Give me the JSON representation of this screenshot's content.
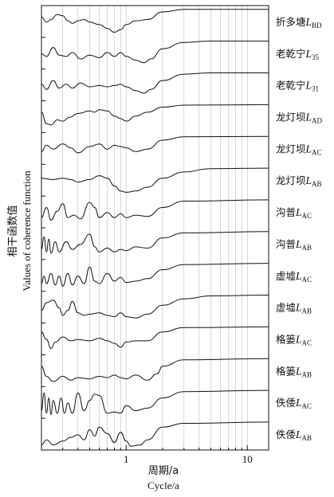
{
  "chart_data": {
    "type": "line",
    "xscale": "log",
    "xlim": [
      0.2,
      15
    ],
    "xticks": [
      1,
      10
    ],
    "xtick_labels": [
      "1",
      "10"
    ],
    "xlabel_cn": "周期/a",
    "xlabel_en": "Cycle/a",
    "ylabel_cn": "相干函数值",
    "ylabel_en": "Values of coherence function",
    "grid": "vertical log-minor grid",
    "series": [
      {
        "label_cn": "折多塘",
        "symbol": "L",
        "sub": "BD",
        "points": [
          [
            0.2,
            0.7
          ],
          [
            0.22,
            0.5
          ],
          [
            0.24,
            0.6
          ],
          [
            0.27,
            0.8
          ],
          [
            0.3,
            0.75
          ],
          [
            0.33,
            0.55
          ],
          [
            0.36,
            0.45
          ],
          [
            0.4,
            0.55
          ],
          [
            0.45,
            0.6
          ],
          [
            0.5,
            0.5
          ],
          [
            0.6,
            0.4
          ],
          [
            0.7,
            0.25
          ],
          [
            0.8,
            0.1
          ],
          [
            0.9,
            0.2
          ],
          [
            1.0,
            0.4
          ],
          [
            1.2,
            0.55
          ],
          [
            1.5,
            0.6
          ],
          [
            2,
            0.9
          ],
          [
            3,
            1
          ],
          [
            15,
            1
          ]
        ]
      },
      {
        "label_cn": "老乾宁",
        "symbol": "L",
        "sub": "35",
        "points": [
          [
            0.2,
            0.5
          ],
          [
            0.22,
            0.4
          ],
          [
            0.25,
            0.75
          ],
          [
            0.28,
            0.45
          ],
          [
            0.32,
            0.4
          ],
          [
            0.36,
            0.55
          ],
          [
            0.42,
            0.3
          ],
          [
            0.5,
            0.45
          ],
          [
            0.6,
            0.35
          ],
          [
            0.7,
            0.55
          ],
          [
            0.8,
            0.4
          ],
          [
            0.9,
            0.55
          ],
          [
            1.0,
            0.4
          ],
          [
            1.2,
            0.25
          ],
          [
            1.4,
            0.15
          ],
          [
            1.6,
            0.3
          ],
          [
            2,
            0.7
          ],
          [
            3,
            0.95
          ],
          [
            5,
            1
          ],
          [
            15,
            1
          ]
        ]
      },
      {
        "label_cn": "老乾宁",
        "symbol": "L",
        "sub": "31",
        "points": [
          [
            0.2,
            0.55
          ],
          [
            0.22,
            0.35
          ],
          [
            0.25,
            0.7
          ],
          [
            0.28,
            0.4
          ],
          [
            0.32,
            0.55
          ],
          [
            0.36,
            0.4
          ],
          [
            0.42,
            0.6
          ],
          [
            0.5,
            0.45
          ],
          [
            0.6,
            0.5
          ],
          [
            0.7,
            0.45
          ],
          [
            0.8,
            0.5
          ],
          [
            0.9,
            0.55
          ],
          [
            1.0,
            0.45
          ],
          [
            1.2,
            0.3
          ],
          [
            1.4,
            0.2
          ],
          [
            1.6,
            0.35
          ],
          [
            2,
            0.7
          ],
          [
            3,
            0.95
          ],
          [
            5,
            1
          ],
          [
            15,
            1
          ]
        ]
      },
      {
        "label_cn": "龙灯坝",
        "symbol": "L",
        "sub": "AD",
        "points": [
          [
            0.2,
            0.7
          ],
          [
            0.22,
            0.25
          ],
          [
            0.24,
            0.2
          ],
          [
            0.27,
            0.4
          ],
          [
            0.3,
            0.35
          ],
          [
            0.34,
            0.5
          ],
          [
            0.4,
            0.65
          ],
          [
            0.5,
            0.75
          ],
          [
            0.55,
            0.7
          ],
          [
            0.6,
            0.8
          ],
          [
            0.7,
            0.75
          ],
          [
            0.8,
            0.55
          ],
          [
            0.9,
            0.45
          ],
          [
            1.0,
            0.35
          ],
          [
            1.2,
            0.55
          ],
          [
            1.5,
            0.7
          ],
          [
            2,
            0.9
          ],
          [
            3,
            0.98
          ],
          [
            15,
            1
          ]
        ]
      },
      {
        "label_cn": "龙灯坝",
        "symbol": "L",
        "sub": "AC",
        "points": [
          [
            0.2,
            0.4
          ],
          [
            0.22,
            0.65
          ],
          [
            0.25,
            0.5
          ],
          [
            0.3,
            0.7
          ],
          [
            0.35,
            0.55
          ],
          [
            0.4,
            0.35
          ],
          [
            0.5,
            0.6
          ],
          [
            0.6,
            0.7
          ],
          [
            0.7,
            0.5
          ],
          [
            0.8,
            0.65
          ],
          [
            0.9,
            0.6
          ],
          [
            1.0,
            0.55
          ],
          [
            1.2,
            0.4
          ],
          [
            1.5,
            0.5
          ],
          [
            2,
            0.85
          ],
          [
            3,
            0.98
          ],
          [
            15,
            1
          ]
        ]
      },
      {
        "label_cn": "龙灯坝",
        "symbol": "L",
        "sub": "AB",
        "points": [
          [
            0.2,
            0.6
          ],
          [
            0.25,
            0.55
          ],
          [
            0.3,
            0.6
          ],
          [
            0.35,
            0.55
          ],
          [
            0.4,
            0.45
          ],
          [
            0.5,
            0.55
          ],
          [
            0.6,
            0.7
          ],
          [
            0.7,
            0.6
          ],
          [
            0.8,
            0.3
          ],
          [
            0.9,
            0.1
          ],
          [
            1.0,
            0.05
          ],
          [
            1.2,
            0.1
          ],
          [
            1.5,
            0.25
          ],
          [
            2,
            0.6
          ],
          [
            3,
            0.85
          ],
          [
            5,
            0.98
          ],
          [
            15,
            1
          ]
        ]
      },
      {
        "label_cn": "沟普",
        "symbol": "L",
        "sub": "AC",
        "points": [
          [
            0.2,
            0.3
          ],
          [
            0.22,
            0.7
          ],
          [
            0.24,
            0.2
          ],
          [
            0.27,
            0.55
          ],
          [
            0.3,
            0.85
          ],
          [
            0.33,
            0.3
          ],
          [
            0.37,
            0.4
          ],
          [
            0.42,
            0.25
          ],
          [
            0.5,
            0.9
          ],
          [
            0.55,
            0.7
          ],
          [
            0.6,
            0.3
          ],
          [
            0.7,
            0.5
          ],
          [
            0.8,
            0.3
          ],
          [
            0.9,
            0.45
          ],
          [
            1.0,
            0.3
          ],
          [
            1.2,
            0.4
          ],
          [
            1.5,
            0.35
          ],
          [
            2,
            0.7
          ],
          [
            3,
            0.95
          ],
          [
            15,
            1
          ]
        ]
      },
      {
        "label_cn": "沟普",
        "symbol": "L",
        "sub": "AB",
        "points": [
          [
            0.2,
            0.3
          ],
          [
            0.21,
            0.8
          ],
          [
            0.22,
            0.2
          ],
          [
            0.23,
            0.7
          ],
          [
            0.24,
            0.15
          ],
          [
            0.26,
            0.6
          ],
          [
            0.28,
            0.2
          ],
          [
            0.32,
            0.6
          ],
          [
            0.36,
            0.3
          ],
          [
            0.42,
            0.5
          ],
          [
            0.5,
            0.9
          ],
          [
            0.55,
            0.4
          ],
          [
            0.6,
            0.2
          ],
          [
            0.7,
            0.35
          ],
          [
            0.8,
            0.2
          ],
          [
            0.9,
            0.3
          ],
          [
            1.0,
            0.25
          ],
          [
            1.2,
            0.4
          ],
          [
            1.5,
            0.35
          ],
          [
            2,
            0.75
          ],
          [
            3,
            0.95
          ],
          [
            15,
            1
          ]
        ]
      },
      {
        "label_cn": "虚墟",
        "symbol": "L",
        "sub": "AC",
        "points": [
          [
            0.2,
            0.2
          ],
          [
            0.21,
            0.5
          ],
          [
            0.22,
            0.2
          ],
          [
            0.24,
            0.6
          ],
          [
            0.26,
            0.15
          ],
          [
            0.28,
            0.5
          ],
          [
            0.3,
            0.1
          ],
          [
            0.33,
            0.6
          ],
          [
            0.36,
            0.15
          ],
          [
            0.4,
            0.5
          ],
          [
            0.45,
            0.2
          ],
          [
            0.5,
            0.85
          ],
          [
            0.55,
            0.3
          ],
          [
            0.6,
            0.2
          ],
          [
            0.7,
            0.6
          ],
          [
            0.8,
            0.3
          ],
          [
            0.9,
            0.45
          ],
          [
            1.0,
            0.25
          ],
          [
            1.2,
            0.3
          ],
          [
            1.5,
            0.4
          ],
          [
            2,
            0.75
          ],
          [
            3,
            0.95
          ],
          [
            15,
            1
          ]
        ]
      },
      {
        "label_cn": "虚墟",
        "symbol": "L",
        "sub": "AB",
        "points": [
          [
            0.2,
            0.4
          ],
          [
            0.22,
            0.7
          ],
          [
            0.25,
            0.8
          ],
          [
            0.28,
            0.5
          ],
          [
            0.3,
            0.2
          ],
          [
            0.33,
            0.4
          ],
          [
            0.36,
            0.75
          ],
          [
            0.4,
            0.3
          ],
          [
            0.45,
            0.2
          ],
          [
            0.5,
            0.25
          ],
          [
            0.6,
            0.3
          ],
          [
            0.7,
            0.2
          ],
          [
            0.8,
            0.15
          ],
          [
            0.9,
            0.3
          ],
          [
            1.0,
            0.15
          ],
          [
            1.2,
            0.1
          ],
          [
            1.5,
            0.25
          ],
          [
            2,
            0.6
          ],
          [
            3,
            0.85
          ],
          [
            5,
            0.97
          ],
          [
            15,
            1
          ]
        ]
      },
      {
        "label_cn": "格篓",
        "symbol": "L",
        "sub": "AC",
        "points": [
          [
            0.2,
            0.8
          ],
          [
            0.22,
            0.5
          ],
          [
            0.24,
            0.15
          ],
          [
            0.26,
            0.4
          ],
          [
            0.3,
            0.6
          ],
          [
            0.35,
            0.45
          ],
          [
            0.4,
            0.5
          ],
          [
            0.5,
            0.45
          ],
          [
            0.6,
            0.55
          ],
          [
            0.7,
            0.45
          ],
          [
            0.8,
            0.35
          ],
          [
            0.9,
            0.2
          ],
          [
            1.0,
            0.4
          ],
          [
            1.2,
            0.45
          ],
          [
            1.5,
            0.45
          ],
          [
            2,
            0.8
          ],
          [
            3,
            0.97
          ],
          [
            15,
            1
          ]
        ]
      },
      {
        "label_cn": "格篓",
        "symbol": "L",
        "sub": "AB",
        "points": [
          [
            0.2,
            0.7
          ],
          [
            0.22,
            0.3
          ],
          [
            0.25,
            0.1
          ],
          [
            0.3,
            0.3
          ],
          [
            0.35,
            0.15
          ],
          [
            0.4,
            0.25
          ],
          [
            0.5,
            0.2
          ],
          [
            0.6,
            0.3
          ],
          [
            0.7,
            0.25
          ],
          [
            0.8,
            0.35
          ],
          [
            0.9,
            0.25
          ],
          [
            1.0,
            0.2
          ],
          [
            1.2,
            0.35
          ],
          [
            1.5,
            0.15
          ],
          [
            1.8,
            0.4
          ],
          [
            2,
            0.7
          ],
          [
            3,
            0.95
          ],
          [
            15,
            1
          ]
        ]
      },
      {
        "label_cn": "佚倭",
        "symbol": "L",
        "sub": "AC",
        "points": [
          [
            0.2,
            0.2
          ],
          [
            0.21,
            0.9
          ],
          [
            0.22,
            0.1
          ],
          [
            0.23,
            0.7
          ],
          [
            0.24,
            0.05
          ],
          [
            0.25,
            0.6
          ],
          [
            0.27,
            0.1
          ],
          [
            0.29,
            0.7
          ],
          [
            0.31,
            0.1
          ],
          [
            0.33,
            0.5
          ],
          [
            0.36,
            0.1
          ],
          [
            0.4,
            0.9
          ],
          [
            0.45,
            0.2
          ],
          [
            0.5,
            0.6
          ],
          [
            0.55,
            0.85
          ],
          [
            0.6,
            0.8
          ],
          [
            0.7,
            0.1
          ],
          [
            0.8,
            0.15
          ],
          [
            0.9,
            0.1
          ],
          [
            1.0,
            0.4
          ],
          [
            1.2,
            0.2
          ],
          [
            1.5,
            0.3
          ],
          [
            2,
            0.7
          ],
          [
            3,
            0.95
          ],
          [
            15,
            1
          ]
        ]
      },
      {
        "label_cn": "佚倭",
        "symbol": "L",
        "sub": "AB",
        "points": [
          [
            0.2,
            0.1
          ],
          [
            0.22,
            0.3
          ],
          [
            0.25,
            0.1
          ],
          [
            0.3,
            0.25
          ],
          [
            0.35,
            0.4
          ],
          [
            0.4,
            0.5
          ],
          [
            0.45,
            0.3
          ],
          [
            0.5,
            0.7
          ],
          [
            0.55,
            0.45
          ],
          [
            0.6,
            0.8
          ],
          [
            0.7,
            0.55
          ],
          [
            0.8,
            0.2
          ],
          [
            0.9,
            0.6
          ],
          [
            1.0,
            0.25
          ],
          [
            1.1,
            0.05
          ],
          [
            1.3,
            0.1
          ],
          [
            1.5,
            0.3
          ],
          [
            2,
            0.8
          ],
          [
            3,
            0.95
          ],
          [
            15,
            1
          ]
        ]
      }
    ]
  }
}
